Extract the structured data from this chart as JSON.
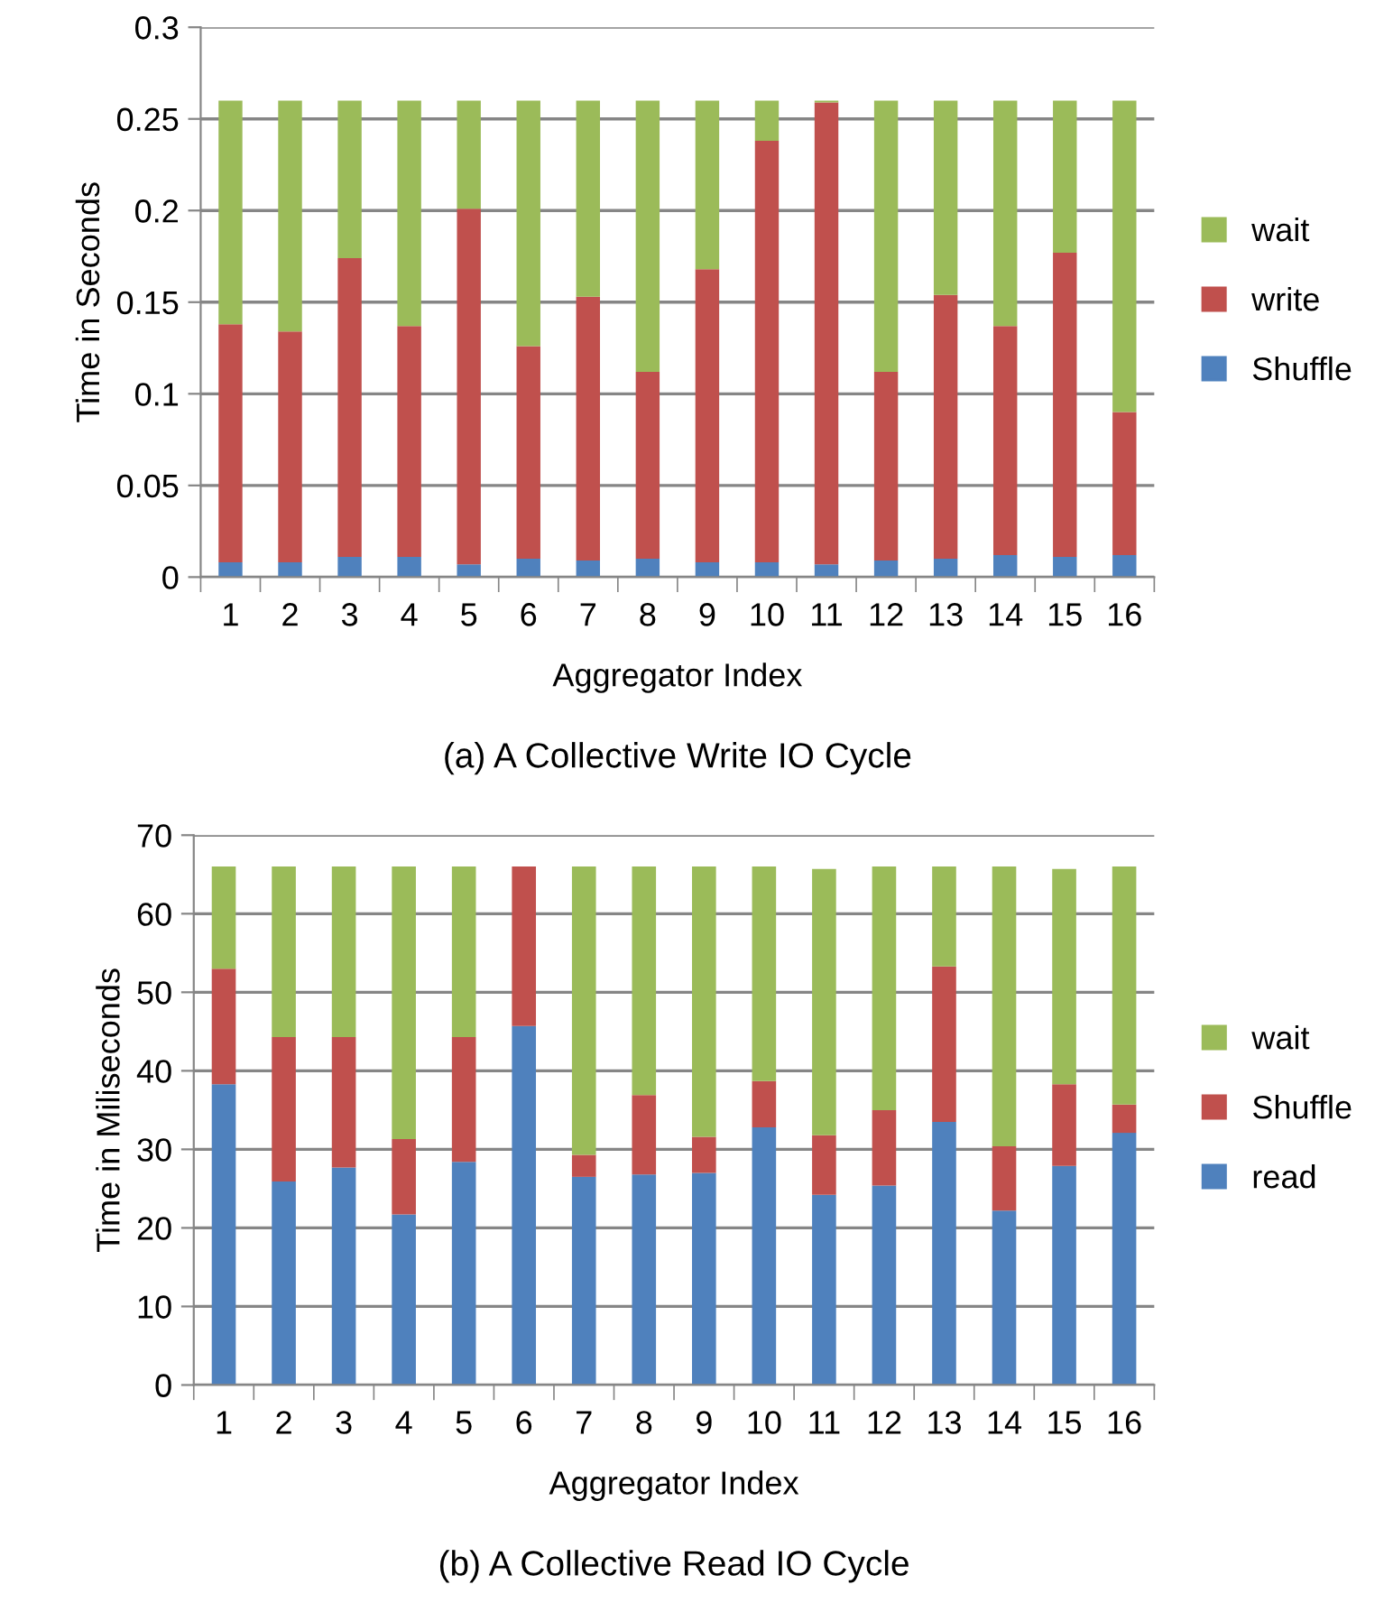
{
  "chart_data": [
    {
      "type": "bar",
      "stacked": true,
      "title": "(a) A Collective Write IO Cycle",
      "xlabel": "Aggregator Index",
      "ylabel": "Time in Seconds",
      "categories": [
        "1",
        "2",
        "3",
        "4",
        "5",
        "6",
        "7",
        "8",
        "9",
        "10",
        "11",
        "12",
        "13",
        "14",
        "15",
        "16"
      ],
      "series": [
        {
          "name": "Shuffle",
          "color": "#4f81bd",
          "values": [
            0.008,
            0.008,
            0.011,
            0.011,
            0.007,
            0.01,
            0.009,
            0.01,
            0.008,
            0.008,
            0.007,
            0.009,
            0.01,
            0.012,
            0.011,
            0.012
          ]
        },
        {
          "name": "write",
          "color": "#c0504d",
          "values": [
            0.13,
            0.126,
            0.163,
            0.126,
            0.194,
            0.116,
            0.144,
            0.102,
            0.16,
            0.23,
            0.252,
            0.103,
            0.144,
            0.125,
            0.166,
            0.078
          ]
        },
        {
          "name": "wait",
          "color": "#9bbb59",
          "values": [
            0.122,
            0.126,
            0.086,
            0.123,
            0.059,
            0.134,
            0.107,
            0.148,
            0.092,
            0.022,
            0.001,
            0.148,
            0.106,
            0.123,
            0.083,
            0.17
          ]
        }
      ],
      "ylim": [
        0,
        0.3
      ],
      "yticks": [
        {
          "value": 0,
          "label": "0"
        },
        0.05,
        0.1,
        0.15,
        0.2,
        0.25,
        0.3
      ],
      "grid": "y",
      "legend": "right"
    },
    {
      "type": "bar",
      "stacked": true,
      "title": "(b) A Collective Read IO Cycle",
      "xlabel": "Aggregator Index",
      "ylabel": "Time in Miliseconds",
      "categories": [
        "1",
        "2",
        "3",
        "4",
        "5",
        "6",
        "7",
        "8",
        "9",
        "10",
        "11",
        "12",
        "13",
        "14",
        "15",
        "16"
      ],
      "series": [
        {
          "name": "read",
          "color": "#4f81bd",
          "values": [
            38.3,
            25.9,
            27.7,
            21.7,
            28.4,
            45.7,
            26.5,
            26.8,
            27.0,
            32.8,
            24.2,
            25.4,
            33.5,
            22.2,
            27.9,
            32.1
          ]
        },
        {
          "name": "Shuffle",
          "color": "#c0504d",
          "values": [
            14.7,
            18.4,
            16.6,
            9.6,
            15.9,
            20.3,
            2.8,
            10.1,
            4.6,
            5.9,
            7.6,
            9.6,
            19.8,
            8.2,
            10.4,
            3.6
          ]
        },
        {
          "name": "wait",
          "color": "#9bbb59",
          "values": [
            13.0,
            21.7,
            21.7,
            34.7,
            21.7,
            0,
            36.7,
            29.1,
            34.4,
            27.3,
            33.9,
            31.0,
            12.7,
            35.6,
            27.4,
            30.3
          ]
        }
      ],
      "ylim": [
        0,
        70
      ],
      "yticks": [
        0,
        10,
        20,
        30,
        40,
        50,
        60,
        70
      ],
      "grid": "y",
      "legend": "right"
    }
  ]
}
